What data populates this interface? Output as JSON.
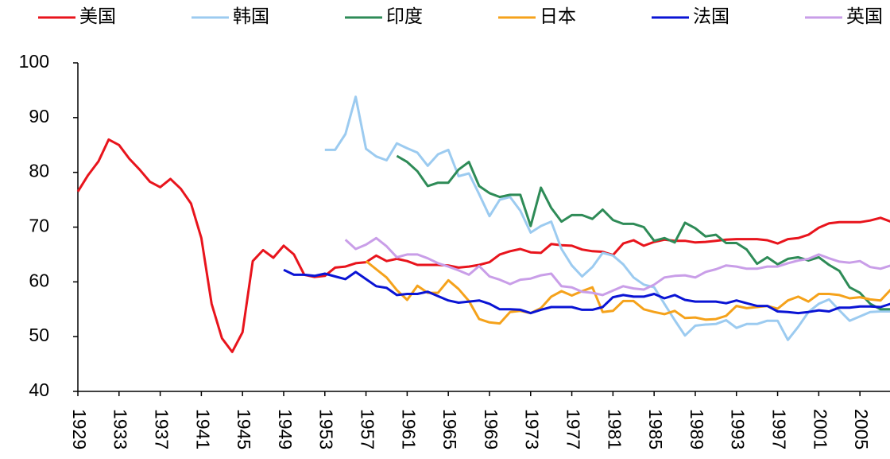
{
  "chart_data": {
    "type": "line",
    "x": [
      1929,
      1930,
      1931,
      1932,
      1933,
      1934,
      1935,
      1936,
      1937,
      1938,
      1939,
      1940,
      1941,
      1942,
      1943,
      1944,
      1945,
      1946,
      1947,
      1948,
      1949,
      1950,
      1951,
      1952,
      1953,
      1954,
      1955,
      1956,
      1957,
      1958,
      1959,
      1960,
      1961,
      1962,
      1963,
      1964,
      1965,
      1966,
      1967,
      1968,
      1969,
      1970,
      1971,
      1972,
      1973,
      1974,
      1975,
      1976,
      1977,
      1978,
      1979,
      1980,
      1981,
      1982,
      1983,
      1984,
      1985,
      1986,
      1987,
      1988,
      1989,
      1990,
      1991,
      1992,
      1993,
      1994,
      1995,
      1996,
      1997,
      1998,
      1999,
      2000,
      2001,
      2002,
      2003,
      2004,
      2005,
      2006,
      2007,
      2008
    ],
    "series": [
      {
        "name": "美国",
        "color": "#e8141c",
        "values": [
          76.5,
          79.5,
          82,
          86,
          85,
          82.5,
          80.5,
          78.3,
          77.3,
          78.8,
          77,
          74.3,
          68,
          56,
          49.7,
          47.2,
          50.8,
          63.8,
          65.8,
          64.4,
          66.6,
          65,
          61.3,
          60.9,
          61.1,
          62.6,
          62.8,
          63.4,
          63.6,
          64.8,
          63.8,
          64.2,
          63.8,
          63.1,
          63.1,
          63.1,
          63,
          62.6,
          62.8,
          63.1,
          63.6,
          65,
          65.6,
          66,
          65.4,
          65.3,
          66.9,
          66.7,
          66.6,
          65.9,
          65.6,
          65.5,
          64.9,
          67,
          67.6,
          66.6,
          67.3,
          67.7,
          67.5,
          67.5,
          67.2,
          67.3,
          67.5,
          67.7,
          67.8,
          67.8,
          67.8,
          67.6,
          67,
          67.8,
          68,
          68.6,
          69.9,
          70.7,
          70.9,
          70.9,
          70.9,
          71.2,
          71.7,
          71
        ]
      },
      {
        "name": "韩国",
        "color": "#9ccbf0",
        "values": [
          null,
          null,
          null,
          null,
          null,
          null,
          null,
          null,
          null,
          null,
          null,
          null,
          null,
          null,
          null,
          null,
          null,
          null,
          null,
          null,
          null,
          null,
          null,
          null,
          84.1,
          84.1,
          87,
          93.8,
          84.3,
          82.9,
          82.2,
          85.3,
          84.4,
          83.6,
          81.2,
          83.3,
          84.1,
          79.3,
          79.8,
          76,
          72,
          75,
          75.5,
          73,
          69,
          70.2,
          71,
          66,
          63,
          61,
          62.7,
          65.3,
          64.8,
          63.2,
          60.8,
          59.5,
          59,
          56,
          53,
          50.2,
          52,
          52.2,
          52.3,
          53,
          51.6,
          52.3,
          52.3,
          52.9,
          52.9,
          49.4,
          51.8,
          54.5,
          56,
          56.8,
          54.8,
          52.9,
          53.7,
          54.5,
          54.6,
          54.6
        ]
      },
      {
        "name": "印度",
        "color": "#2e8b57",
        "values": [
          null,
          null,
          null,
          null,
          null,
          null,
          null,
          null,
          null,
          null,
          null,
          null,
          null,
          null,
          null,
          null,
          null,
          null,
          null,
          null,
          null,
          null,
          null,
          null,
          null,
          null,
          null,
          null,
          null,
          null,
          null,
          83,
          81.9,
          80.2,
          77.5,
          78.1,
          78.1,
          80.5,
          81.9,
          77.5,
          76.2,
          75.5,
          75.9,
          75.9,
          70.2,
          77.2,
          73.5,
          71,
          72.2,
          72.2,
          71.5,
          73.2,
          71.3,
          70.6,
          70.6,
          70,
          67.5,
          68,
          67.2,
          70.8,
          69.8,
          68.3,
          68.6,
          67.1,
          67.1,
          65.9,
          63.3,
          64.5,
          63.2,
          64.2,
          64.5,
          63.9,
          64.5,
          63.1,
          62,
          59,
          58,
          56,
          55,
          55
        ]
      },
      {
        "name": "日本",
        "color": "#f5a21b",
        "values": [
          null,
          null,
          null,
          null,
          null,
          null,
          null,
          null,
          null,
          null,
          null,
          null,
          null,
          null,
          null,
          null,
          null,
          null,
          null,
          null,
          null,
          null,
          null,
          null,
          null,
          null,
          null,
          null,
          63.8,
          62.3,
          60.8,
          58.5,
          56.7,
          59.3,
          58,
          58,
          60.3,
          58.7,
          56.5,
          53.2,
          52.6,
          52.4,
          54.5,
          54.7,
          54.3,
          55.2,
          57.3,
          58.3,
          57.5,
          58.3,
          59,
          54.5,
          54.7,
          56.5,
          56.5,
          55,
          54.5,
          54.1,
          54.7,
          53.4,
          53.5,
          53.1,
          53.2,
          53.8,
          55.6,
          55.2,
          55.4,
          55.6,
          55.1,
          56.6,
          57.3,
          56.4,
          57.8,
          57.8,
          57.6,
          57,
          57.2,
          56.8,
          56.6,
          58.6
        ]
      },
      {
        "name": "法国",
        "color": "#0a14d4",
        "values": [
          null,
          null,
          null,
          null,
          null,
          null,
          null,
          null,
          null,
          null,
          null,
          null,
          null,
          null,
          null,
          null,
          null,
          null,
          null,
          null,
          62.2,
          61.3,
          61.3,
          61.1,
          61.5,
          61,
          60.5,
          61.8,
          60.5,
          59.2,
          58.9,
          57.6,
          57.8,
          57.8,
          58.2,
          57.4,
          56.6,
          56.2,
          56.4,
          56.6,
          56,
          55,
          55,
          54.9,
          54.3,
          54.9,
          55.4,
          55.4,
          55.4,
          54.9,
          54.9,
          55.4,
          57.2,
          57.6,
          57.3,
          57.3,
          57.8,
          57,
          57.6,
          56.7,
          56.4,
          56.4,
          56.4,
          56.1,
          56.6,
          56.1,
          55.6,
          55.6,
          54.6,
          54.5,
          54.3,
          54.5,
          54.8,
          54.6,
          55.3,
          55.3,
          55.5,
          55.5,
          55.4,
          56
        ]
      },
      {
        "name": "英国",
        "color": "#c99ee8",
        "values": [
          null,
          null,
          null,
          null,
          null,
          null,
          null,
          null,
          null,
          null,
          null,
          null,
          null,
          null,
          null,
          null,
          null,
          null,
          null,
          null,
          null,
          null,
          null,
          null,
          null,
          null,
          67.7,
          66,
          66.8,
          68,
          66.5,
          64.5,
          65,
          65,
          64.3,
          63.4,
          62.8,
          62.1,
          61.3,
          62.9,
          61,
          60.4,
          59.6,
          60.4,
          60.6,
          61.2,
          61.5,
          59.2,
          59,
          58.2,
          58,
          57.6,
          58.4,
          59.2,
          58.8,
          58.6,
          59.5,
          60.8,
          61.1,
          61.2,
          60.8,
          61.8,
          62.3,
          63,
          62.8,
          62.4,
          62.4,
          62.8,
          62.8,
          63.4,
          63.9,
          64.2,
          65,
          64.3,
          63.7,
          63.5,
          63.8,
          62.7,
          62.4,
          63
        ]
      }
    ],
    "xlim": [
      1929,
      2008
    ],
    "xticks": [
      1929,
      1933,
      1937,
      1941,
      1945,
      1949,
      1953,
      1957,
      1961,
      1965,
      1969,
      1973,
      1977,
      1981,
      1985,
      1989,
      1993,
      1997,
      2001,
      2005
    ],
    "ylim": [
      40,
      100
    ],
    "yticks": [
      40,
      50,
      60,
      70,
      80,
      90,
      100
    ]
  }
}
